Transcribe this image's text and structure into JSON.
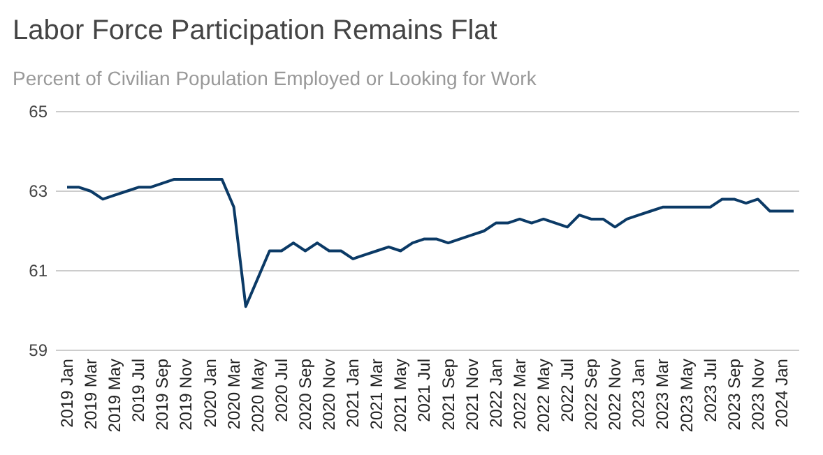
{
  "chart_data": {
    "type": "line",
    "title": "Labor Force Participation Remains Flat",
    "subtitle": "Percent of Civilian Population Employed or Looking for Work",
    "categories": [
      "2019 Jan",
      null,
      "2019 Mar",
      null,
      "2019 May",
      null,
      "2019 Jul",
      null,
      "2019 Sep",
      null,
      "2019 Nov",
      null,
      "2020 Jan",
      null,
      "2020 Mar",
      null,
      "2020 May",
      null,
      "2020 Jul",
      null,
      "2020 Sep",
      null,
      "2020 Nov",
      null,
      "2021 Jan",
      null,
      "2021 Mar",
      null,
      "2021 May",
      null,
      "2021 Jul",
      null,
      "2021 Sep",
      null,
      "2021 Nov",
      null,
      "2022 Jan",
      null,
      "2022 Mar",
      null,
      "2022 May",
      null,
      "2022 Jul",
      null,
      "2022 Sep",
      null,
      "2022 Nov",
      null,
      "2023 Jan",
      null,
      "2023 Mar",
      null,
      "2023 May",
      null,
      "2023 Jul",
      null,
      "2023 Sep",
      null,
      "2023 Nov",
      null,
      "2024 Jan",
      null
    ],
    "series": [
      {
        "color": "#0b3a66",
        "values": [
          63.1,
          63.1,
          63.0,
          62.8,
          62.9,
          63.0,
          63.1,
          63.1,
          63.2,
          63.3,
          63.3,
          63.3,
          63.3,
          63.3,
          62.6,
          60.1,
          60.8,
          61.5,
          61.5,
          61.7,
          61.5,
          61.7,
          61.5,
          61.5,
          61.3,
          61.4,
          61.5,
          61.6,
          61.5,
          61.7,
          61.8,
          61.8,
          61.7,
          61.8,
          61.9,
          62.0,
          62.2,
          62.2,
          62.3,
          62.2,
          62.3,
          62.2,
          62.1,
          62.4,
          62.3,
          62.3,
          62.1,
          62.3,
          62.4,
          62.5,
          62.6,
          62.6,
          62.6,
          62.6,
          62.6,
          62.8,
          62.8,
          62.7,
          62.8,
          62.5,
          62.5,
          62.5
        ]
      }
    ],
    "ylim": [
      59,
      65
    ],
    "yticks": [
      59,
      61,
      63,
      65
    ],
    "grid": "y",
    "marker": "none",
    "line_style": "solid"
  }
}
